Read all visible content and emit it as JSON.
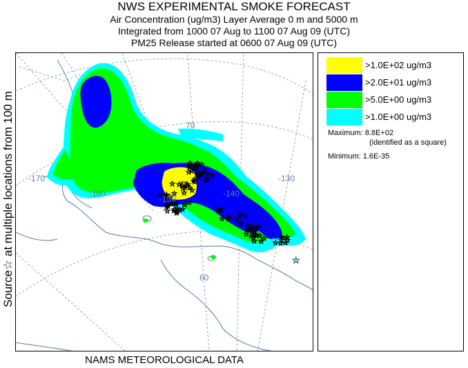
{
  "header": {
    "title": "NWS EXPERIMENTAL SMOKE FORECAST",
    "line2": "Air Concentration (ug/m3) Layer Average    0 m and  5000 m",
    "line3": "Integrated from 1000 07 Aug to 1100 07 Aug 09 (UTC)",
    "line4": "PM25 Release started at 0600 07 Aug 09 (UTC)"
  },
  "side_label": "Source☆ at multiple locations    from   100 m",
  "footer": "NAMS METEOROLOGICAL DATA",
  "map": {
    "longitude_labels": [
      "-170",
      "-160",
      "-150",
      "-140",
      "-130"
    ],
    "latitude_labels": [
      "70",
      "60"
    ],
    "colors": {
      "graticule": "#6b8fb5",
      "coast": "#4f7db0",
      "low": "#00ffff",
      "medium": "#00ff00",
      "high": "#0000ff",
      "very_high": "#ffff00"
    },
    "max_marker": "square",
    "source_marker": "star"
  },
  "legend": {
    "items": [
      {
        "label": ">1.0E+02 ug/m3",
        "color": "#ffff00"
      },
      {
        "label": ">2.0E+01 ug/m3",
        "color": "#0000ff"
      },
      {
        "label": ">5.0E+00 ug/m3",
        "color": "#00ff00"
      },
      {
        "label": ">1.0E+00 ug/m3",
        "color": "#00ffff"
      }
    ],
    "maximum": "Maximum: 8.8E+02",
    "maximum_note": "(identified as a square)",
    "minimum": "Minimum: 1.6E-35"
  }
}
